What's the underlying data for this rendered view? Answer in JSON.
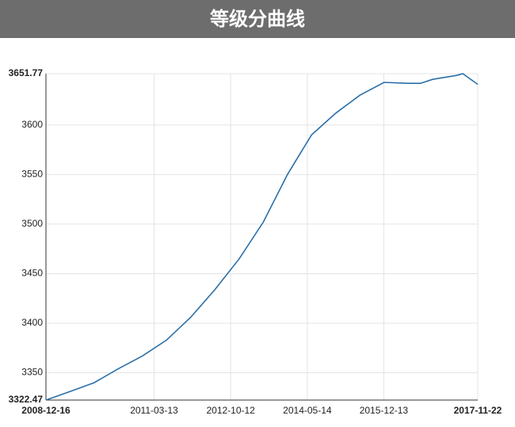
{
  "chart_data": {
    "type": "line",
    "title": "等级分曲线",
    "x": [
      "2008-12-16",
      "2009-06-15",
      "2009-12-15",
      "2010-06-15",
      "2010-12-15",
      "2011-06-15",
      "2011-12-15",
      "2012-06-15",
      "2012-12-15",
      "2013-06-15",
      "2013-12-15",
      "2014-06-15",
      "2014-12-15",
      "2015-06-15",
      "2015-12-15",
      "2016-06-15",
      "2016-09-15",
      "2016-12-15",
      "2017-06-15",
      "2017-08-01",
      "2017-11-22"
    ],
    "series": [
      {
        "name": "等级分",
        "color": "#2a6fa8",
        "values": [
          3322.47,
          3331,
          3340,
          3354,
          3367,
          3383,
          3406,
          3434,
          3465,
          3502,
          3550,
          3590,
          3612,
          3630,
          3643,
          3642,
          3642,
          3646,
          3650,
          3651.77,
          3641
        ]
      }
    ],
    "xlim": [
      "2008-12-16",
      "2017-11-22"
    ],
    "xticks": [
      "2008-12-16",
      "2011-03-13",
      "2012-10-12",
      "2014-05-14",
      "2015-12-13",
      "2017-11-22"
    ],
    "ylim": [
      3322.47,
      3651.77
    ],
    "yticks": [
      3322.47,
      3350,
      3400,
      3450,
      3500,
      3550,
      3600,
      3651.77
    ],
    "grid": true
  }
}
